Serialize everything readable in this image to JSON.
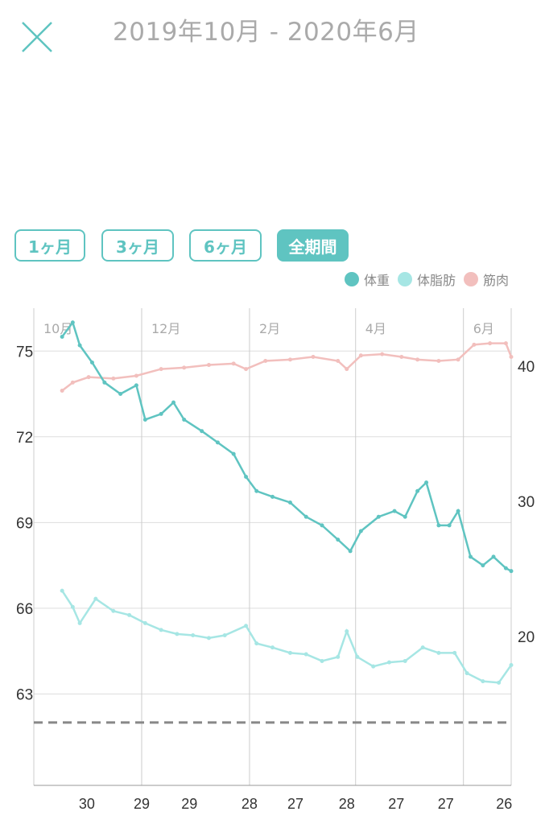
{
  "header": {
    "title": "2019年10月 - 2020年6月",
    "close_icon": "close-icon"
  },
  "range_buttons": [
    {
      "label": "1ヶ月",
      "active": false
    },
    {
      "label": "3ヶ月",
      "active": false
    },
    {
      "label": "6ヶ月",
      "active": false
    },
    {
      "label": "全期間",
      "active": true
    }
  ],
  "colors": {
    "weight": "#5fc4c1",
    "fat": "#a6e6e4",
    "muscle": "#f2bfbd",
    "accent": "#5fc4c1"
  },
  "chart_data": {
    "type": "line",
    "legend": [
      {
        "name": "体重",
        "color": "#5fc4c1"
      },
      {
        "name": "体脂肪",
        "color": "#a6e6e4"
      },
      {
        "name": "筋肉",
        "color": "#f2bfbd"
      }
    ],
    "legend_position": "top-right",
    "x_unit": "days since 2019-10-01",
    "xlim": [
      0,
      270
    ],
    "month_labels": [
      {
        "label": "10月",
        "day": 0
      },
      {
        "label": "12月",
        "day": 61
      },
      {
        "label": "2月",
        "day": 122
      },
      {
        "label": "4月",
        "day": 182
      },
      {
        "label": "6月",
        "day": 243
      }
    ],
    "x_tick_labels": [
      {
        "label": "30",
        "day": 30
      },
      {
        "label": "29",
        "day": 61
      },
      {
        "label": "29",
        "day": 88
      },
      {
        "label": "28",
        "day": 122
      },
      {
        "label": "27",
        "day": 148
      },
      {
        "label": "28",
        "day": 177
      },
      {
        "label": "27",
        "day": 205
      },
      {
        "label": "27",
        "day": 233
      },
      {
        "label": "26",
        "day": 266
      }
    ],
    "y_left": {
      "ticks": [
        75,
        72,
        69,
        66,
        63
      ],
      "lim": [
        59.8,
        76.5
      ]
    },
    "y_right": {
      "ticks": [
        40,
        30,
        20
      ],
      "lim": [
        9,
        44.3
      ]
    },
    "target_line": 62,
    "series": [
      {
        "name": "体重",
        "axis": "left",
        "days": [
          16,
          22,
          26,
          33,
          40,
          49,
          58,
          63,
          72,
          79,
          85,
          95,
          104,
          113,
          120,
          126,
          135,
          145,
          154,
          163,
          172,
          179,
          185,
          195,
          204,
          210,
          217,
          222,
          229,
          235,
          240,
          247,
          254,
          260,
          267,
          270
        ],
        "values": [
          75.5,
          76,
          75.2,
          74.6,
          73.9,
          73.5,
          73.8,
          72.6,
          72.8,
          73.2,
          72.6,
          72.2,
          71.8,
          71.4,
          70.6,
          70.1,
          69.9,
          69.7,
          69.2,
          68.9,
          68.4,
          68.0,
          68.7,
          69.2,
          69.4,
          69.2,
          70.1,
          70.4,
          68.9,
          68.9,
          69.4,
          67.8,
          67.5,
          67.8,
          67.4,
          67.3
        ]
      },
      {
        "name": "体脂肪",
        "axis": "right",
        "days": [
          16,
          22,
          26,
          35,
          45,
          54,
          63,
          72,
          81,
          90,
          99,
          108,
          120,
          126,
          135,
          145,
          154,
          163,
          172,
          177,
          183,
          192,
          201,
          210,
          220,
          229,
          238,
          245,
          254,
          263,
          270
        ],
        "values": [
          23.4,
          22.2,
          21,
          22.8,
          21.9,
          21.6,
          21,
          20.5,
          20.2,
          20.1,
          19.9,
          20.1,
          20.8,
          19.5,
          19.2,
          18.8,
          18.7,
          18.2,
          18.5,
          20.4,
          18.5,
          17.8,
          18.1,
          18.2,
          19.2,
          18.8,
          18.8,
          17.3,
          16.7,
          16.6,
          17.9
        ]
      },
      {
        "name": "筋肉",
        "axis": "right",
        "days": [
          16,
          22,
          31,
          45,
          58,
          72,
          85,
          99,
          113,
          120,
          131,
          145,
          158,
          172,
          177,
          185,
          197,
          208,
          217,
          229,
          240,
          249,
          258,
          267,
          270
        ],
        "values": [
          38.2,
          38.8,
          39.2,
          39.1,
          39.3,
          39.8,
          39.9,
          40.1,
          40.2,
          39.8,
          40.4,
          40.5,
          40.7,
          40.4,
          39.8,
          40.8,
          40.9,
          40.7,
          40.5,
          40.4,
          40.5,
          41.6,
          41.7,
          41.7,
          40.7
        ]
      }
    ]
  }
}
